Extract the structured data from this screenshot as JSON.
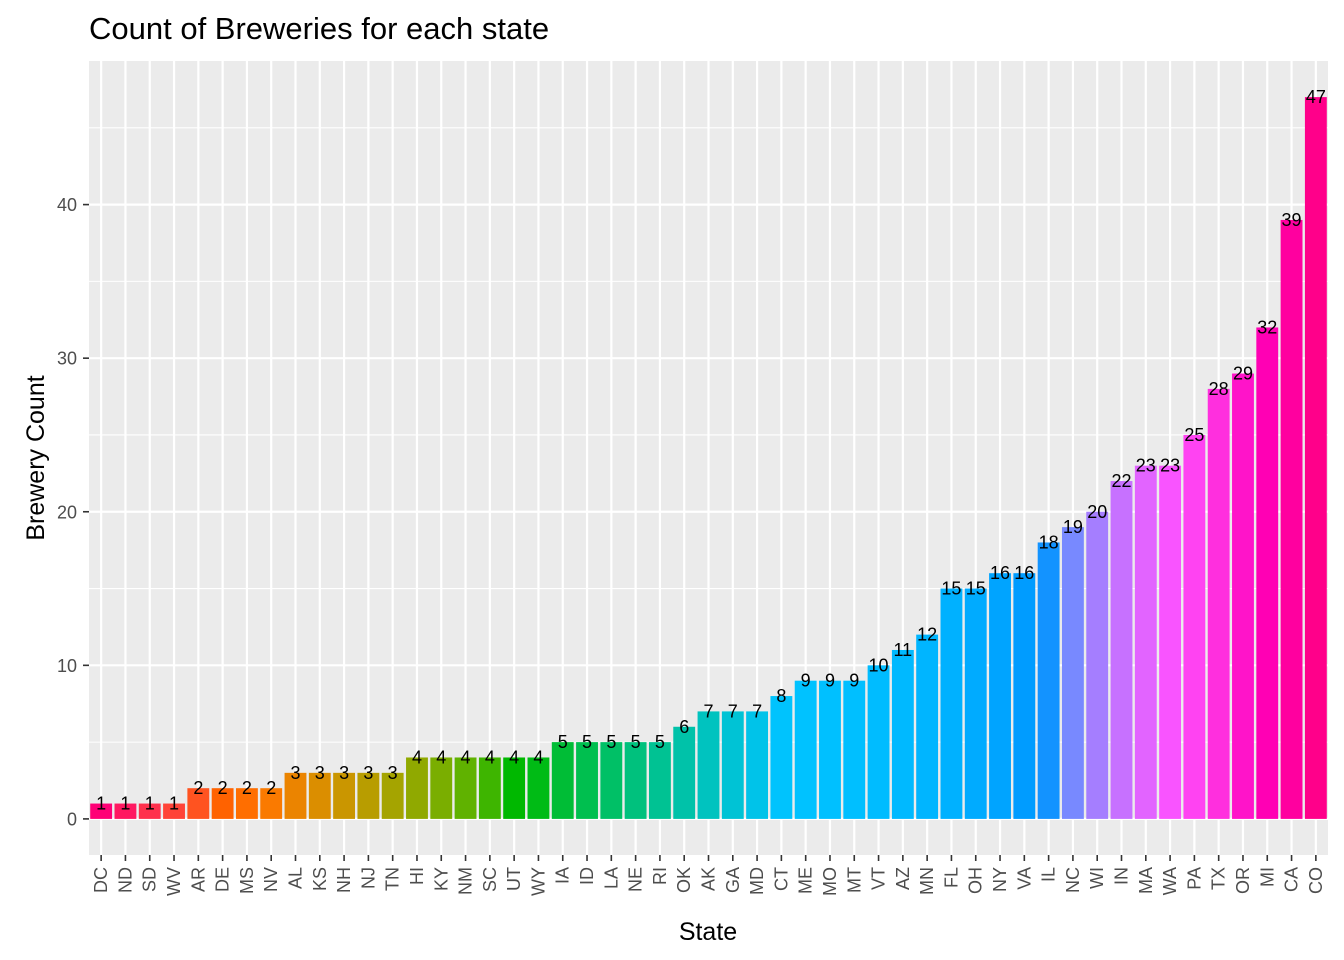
{
  "chart_data": {
    "type": "bar",
    "title": "Count of Breweries for each state",
    "xlabel": "State",
    "ylabel": "Brewery Count",
    "categories": [
      "DC",
      "ND",
      "SD",
      "WV",
      "AR",
      "DE",
      "MS",
      "NV",
      "AL",
      "KS",
      "NH",
      "NJ",
      "TN",
      "HI",
      "KY",
      "NM",
      "SC",
      "UT",
      "WY",
      "IA",
      "ID",
      "LA",
      "NE",
      "RI",
      "OK",
      "AK",
      "GA",
      "MD",
      "CT",
      "ME",
      "MO",
      "MT",
      "VT",
      "AZ",
      "MN",
      "FL",
      "OH",
      "NY",
      "VA",
      "IL",
      "NC",
      "WI",
      "IN",
      "MA",
      "WA",
      "PA",
      "TX",
      "OR",
      "MI",
      "CA",
      "CO"
    ],
    "values": [
      1,
      1,
      1,
      1,
      2,
      2,
      2,
      2,
      3,
      3,
      3,
      3,
      3,
      4,
      4,
      4,
      4,
      4,
      4,
      5,
      5,
      5,
      5,
      5,
      6,
      7,
      7,
      7,
      8,
      9,
      9,
      9,
      10,
      11,
      12,
      15,
      15,
      16,
      16,
      18,
      19,
      20,
      22,
      23,
      23,
      25,
      28,
      29,
      32,
      39,
      47
    ],
    "ylim": [
      -2.35,
      49.35
    ],
    "yticks": [
      0,
      10,
      20,
      30,
      40
    ],
    "grid": true,
    "legend": "none",
    "colors": {
      "panel_background": "#EBEBEB",
      "grid_line": "#FFFFFF",
      "tick_text": "#4D4D4D",
      "bar_palette": "hue"
    }
  }
}
